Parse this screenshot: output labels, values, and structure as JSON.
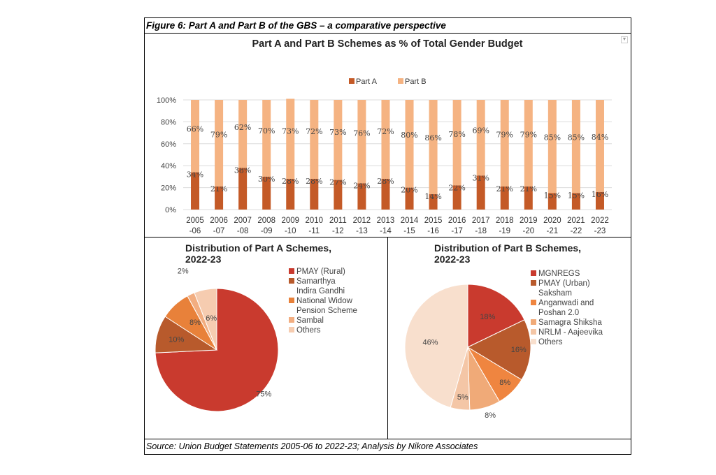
{
  "figure_title": "Figure 6: Part A and Part B of the GBS – a comparative perspective",
  "source_note": "Source: Union Budget Statements 2005-06 to 2022-23; Analysis by Nikore Associates",
  "dropdown_icon": "chevron-down-icon",
  "chart_data": [
    {
      "type": "bar",
      "stacked": true,
      "title": "Part A and Part B Schemes as % of Total Gender Budget",
      "legend_position": "top",
      "categories": [
        [
          "2005",
          "-06"
        ],
        [
          "2006",
          "-07"
        ],
        [
          "2007",
          "-08"
        ],
        [
          "2008",
          "-09"
        ],
        [
          "2009",
          "-10"
        ],
        [
          "2010",
          "-11"
        ],
        [
          "2011",
          "-12"
        ],
        [
          "2012",
          "-13"
        ],
        [
          "2013",
          "-14"
        ],
        [
          "2014",
          "-15"
        ],
        [
          "2015",
          "-16"
        ],
        [
          "2016",
          "-17"
        ],
        [
          "2017",
          "-18"
        ],
        [
          "2018",
          "-19"
        ],
        [
          "2019",
          "-20"
        ],
        [
          "2020",
          "-21"
        ],
        [
          "2021",
          "-22"
        ],
        [
          "2022",
          "-23"
        ]
      ],
      "series": [
        {
          "name": "Part A",
          "color": "#c45a27",
          "values": [
            34,
            21,
            38,
            30,
            28,
            28,
            27,
            24,
            28,
            20,
            14,
            22,
            31,
            21,
            21,
            15,
            15,
            16
          ]
        },
        {
          "name": "Part B",
          "color": "#f5b382",
          "values": [
            66,
            79,
            62,
            70,
            73,
            72,
            73,
            76,
            72,
            80,
            86,
            78,
            69,
            79,
            79,
            85,
            85,
            84
          ]
        }
      ],
      "ylim": [
        0,
        100
      ],
      "yticks": [
        "0%",
        "20%",
        "40%",
        "60%",
        "80%",
        "100%"
      ],
      "grid": true
    },
    {
      "type": "pie",
      "title": [
        "Distribution of Part A Schemes,",
        "2022-23"
      ],
      "legend_position": "right",
      "slices": [
        {
          "label": [
            "PMAY (Rural)"
          ],
          "value": 75,
          "display": "75%",
          "color": "#c93a2e"
        },
        {
          "label": [
            "Samarthya",
            "Indira Gandhi"
          ],
          "value": 10,
          "display": "10%",
          "color": "#b85a2c"
        },
        {
          "label": [
            "National Widow",
            "Pension Scheme"
          ],
          "value": 8,
          "display": "8%",
          "color": "#e8813a"
        },
        {
          "label": [
            "Sambal"
          ],
          "value": 2,
          "display": "2%",
          "color": "#f2ad80"
        },
        {
          "label": [
            "Others"
          ],
          "value": 6,
          "display": "6%",
          "color": "#f6ccb0"
        }
      ]
    },
    {
      "type": "pie",
      "title": [
        "Distribution of Part B Schemes,",
        "2022-23"
      ],
      "legend_position": "right",
      "slices": [
        {
          "label": [
            "MGNREGS"
          ],
          "value": 18,
          "display": "18%",
          "color": "#c93a2e"
        },
        {
          "label": [
            "PMAY (Urban)",
            "Saksham"
          ],
          "value": 16,
          "display": "16%",
          "color": "#b85a2c"
        },
        {
          "label": [
            "Anganwadi and",
            "Poshan 2.0"
          ],
          "value": 8,
          "display": "8%",
          "color": "#ef8540"
        },
        {
          "label": [
            "Samagra Shiksha"
          ],
          "value": 8,
          "display": "8%",
          "color": "#f0aa78"
        },
        {
          "label": [
            "NRLM - Aajeevika"
          ],
          "value": 5,
          "display": "5%",
          "color": "#f4c6a6"
        },
        {
          "label": [
            "Others"
          ],
          "value": 46,
          "display": "46%",
          "color": "#f8dfcd"
        }
      ]
    }
  ]
}
